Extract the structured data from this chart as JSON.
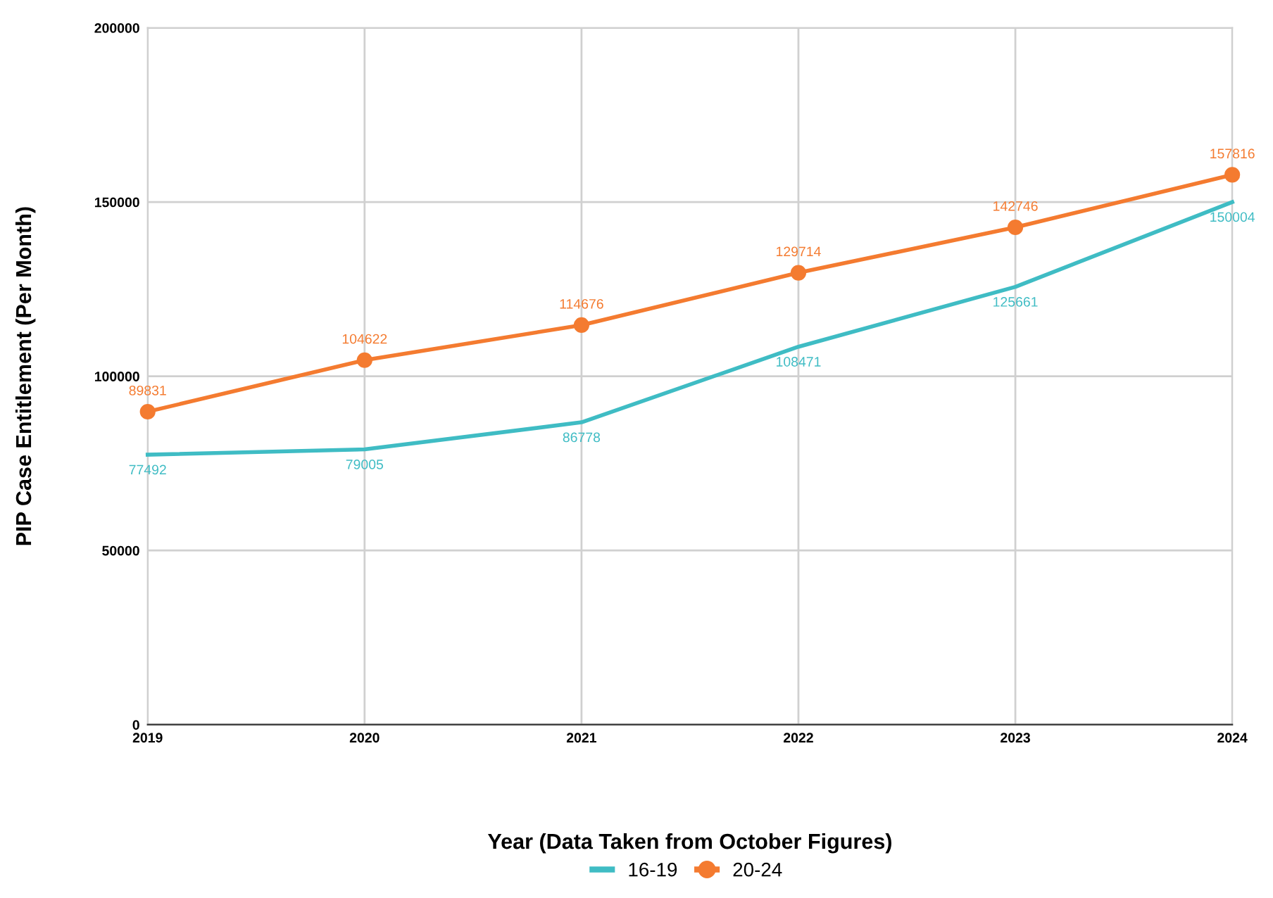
{
  "chart_data": {
    "type": "line",
    "xlabel": "Year (Data Taken from October Figures)",
    "ylabel": "PIP Case Entitlement (Per Month)",
    "x": [
      2019,
      2020,
      2021,
      2022,
      2023,
      2024
    ],
    "series": [
      {
        "name": "16-19",
        "color": "#3fbcc4",
        "marker": "none",
        "values": [
          77492,
          79005,
          86778,
          108471,
          125661,
          150004
        ]
      },
      {
        "name": "20-24",
        "color": "#f47b30",
        "marker": "circle",
        "values": [
          89831,
          104622,
          114676,
          129714,
          142746,
          157816
        ]
      }
    ],
    "xlim": [
      2019,
      2024
    ],
    "xticks": [
      2019,
      2020,
      2021,
      2022,
      2023,
      2024
    ],
    "ylim": [
      0,
      200000
    ],
    "yticks": [
      0,
      50000,
      100000,
      150000,
      200000
    ],
    "grid": true,
    "legend": "bottom",
    "data_labels": true,
    "line_style": "solid"
  }
}
